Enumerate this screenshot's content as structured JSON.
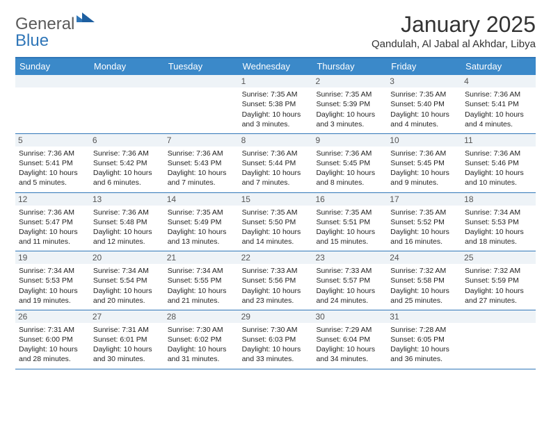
{
  "brand": {
    "word1": "General",
    "word2": "Blue",
    "text_color": "#5a5a5a",
    "accent_color": "#2f76b8"
  },
  "title": "January 2025",
  "location": "Qandulah, Al Jabal al Akhdar, Libya",
  "colors": {
    "header_bg": "#3b89c9",
    "header_text": "#ffffff",
    "rule": "#2f76b8",
    "daynum_bg": "#eef3f7",
    "daynum_text": "#555555",
    "body_text": "#222222",
    "page_bg": "#ffffff"
  },
  "days_of_week": [
    "Sunday",
    "Monday",
    "Tuesday",
    "Wednesday",
    "Thursday",
    "Friday",
    "Saturday"
  ],
  "weeks": [
    [
      {
        "n": "",
        "sunrise": "",
        "sunset": "",
        "daylight": ""
      },
      {
        "n": "",
        "sunrise": "",
        "sunset": "",
        "daylight": ""
      },
      {
        "n": "",
        "sunrise": "",
        "sunset": "",
        "daylight": ""
      },
      {
        "n": "1",
        "sunrise": "Sunrise: 7:35 AM",
        "sunset": "Sunset: 5:38 PM",
        "daylight": "Daylight: 10 hours and 3 minutes."
      },
      {
        "n": "2",
        "sunrise": "Sunrise: 7:35 AM",
        "sunset": "Sunset: 5:39 PM",
        "daylight": "Daylight: 10 hours and 3 minutes."
      },
      {
        "n": "3",
        "sunrise": "Sunrise: 7:35 AM",
        "sunset": "Sunset: 5:40 PM",
        "daylight": "Daylight: 10 hours and 4 minutes."
      },
      {
        "n": "4",
        "sunrise": "Sunrise: 7:36 AM",
        "sunset": "Sunset: 5:41 PM",
        "daylight": "Daylight: 10 hours and 4 minutes."
      }
    ],
    [
      {
        "n": "5",
        "sunrise": "Sunrise: 7:36 AM",
        "sunset": "Sunset: 5:41 PM",
        "daylight": "Daylight: 10 hours and 5 minutes."
      },
      {
        "n": "6",
        "sunrise": "Sunrise: 7:36 AM",
        "sunset": "Sunset: 5:42 PM",
        "daylight": "Daylight: 10 hours and 6 minutes."
      },
      {
        "n": "7",
        "sunrise": "Sunrise: 7:36 AM",
        "sunset": "Sunset: 5:43 PM",
        "daylight": "Daylight: 10 hours and 7 minutes."
      },
      {
        "n": "8",
        "sunrise": "Sunrise: 7:36 AM",
        "sunset": "Sunset: 5:44 PM",
        "daylight": "Daylight: 10 hours and 7 minutes."
      },
      {
        "n": "9",
        "sunrise": "Sunrise: 7:36 AM",
        "sunset": "Sunset: 5:45 PM",
        "daylight": "Daylight: 10 hours and 8 minutes."
      },
      {
        "n": "10",
        "sunrise": "Sunrise: 7:36 AM",
        "sunset": "Sunset: 5:45 PM",
        "daylight": "Daylight: 10 hours and 9 minutes."
      },
      {
        "n": "11",
        "sunrise": "Sunrise: 7:36 AM",
        "sunset": "Sunset: 5:46 PM",
        "daylight": "Daylight: 10 hours and 10 minutes."
      }
    ],
    [
      {
        "n": "12",
        "sunrise": "Sunrise: 7:36 AM",
        "sunset": "Sunset: 5:47 PM",
        "daylight": "Daylight: 10 hours and 11 minutes."
      },
      {
        "n": "13",
        "sunrise": "Sunrise: 7:36 AM",
        "sunset": "Sunset: 5:48 PM",
        "daylight": "Daylight: 10 hours and 12 minutes."
      },
      {
        "n": "14",
        "sunrise": "Sunrise: 7:35 AM",
        "sunset": "Sunset: 5:49 PM",
        "daylight": "Daylight: 10 hours and 13 minutes."
      },
      {
        "n": "15",
        "sunrise": "Sunrise: 7:35 AM",
        "sunset": "Sunset: 5:50 PM",
        "daylight": "Daylight: 10 hours and 14 minutes."
      },
      {
        "n": "16",
        "sunrise": "Sunrise: 7:35 AM",
        "sunset": "Sunset: 5:51 PM",
        "daylight": "Daylight: 10 hours and 15 minutes."
      },
      {
        "n": "17",
        "sunrise": "Sunrise: 7:35 AM",
        "sunset": "Sunset: 5:52 PM",
        "daylight": "Daylight: 10 hours and 16 minutes."
      },
      {
        "n": "18",
        "sunrise": "Sunrise: 7:34 AM",
        "sunset": "Sunset: 5:53 PM",
        "daylight": "Daylight: 10 hours and 18 minutes."
      }
    ],
    [
      {
        "n": "19",
        "sunrise": "Sunrise: 7:34 AM",
        "sunset": "Sunset: 5:53 PM",
        "daylight": "Daylight: 10 hours and 19 minutes."
      },
      {
        "n": "20",
        "sunrise": "Sunrise: 7:34 AM",
        "sunset": "Sunset: 5:54 PM",
        "daylight": "Daylight: 10 hours and 20 minutes."
      },
      {
        "n": "21",
        "sunrise": "Sunrise: 7:34 AM",
        "sunset": "Sunset: 5:55 PM",
        "daylight": "Daylight: 10 hours and 21 minutes."
      },
      {
        "n": "22",
        "sunrise": "Sunrise: 7:33 AM",
        "sunset": "Sunset: 5:56 PM",
        "daylight": "Daylight: 10 hours and 23 minutes."
      },
      {
        "n": "23",
        "sunrise": "Sunrise: 7:33 AM",
        "sunset": "Sunset: 5:57 PM",
        "daylight": "Daylight: 10 hours and 24 minutes."
      },
      {
        "n": "24",
        "sunrise": "Sunrise: 7:32 AM",
        "sunset": "Sunset: 5:58 PM",
        "daylight": "Daylight: 10 hours and 25 minutes."
      },
      {
        "n": "25",
        "sunrise": "Sunrise: 7:32 AM",
        "sunset": "Sunset: 5:59 PM",
        "daylight": "Daylight: 10 hours and 27 minutes."
      }
    ],
    [
      {
        "n": "26",
        "sunrise": "Sunrise: 7:31 AM",
        "sunset": "Sunset: 6:00 PM",
        "daylight": "Daylight: 10 hours and 28 minutes."
      },
      {
        "n": "27",
        "sunrise": "Sunrise: 7:31 AM",
        "sunset": "Sunset: 6:01 PM",
        "daylight": "Daylight: 10 hours and 30 minutes."
      },
      {
        "n": "28",
        "sunrise": "Sunrise: 7:30 AM",
        "sunset": "Sunset: 6:02 PM",
        "daylight": "Daylight: 10 hours and 31 minutes."
      },
      {
        "n": "29",
        "sunrise": "Sunrise: 7:30 AM",
        "sunset": "Sunset: 6:03 PM",
        "daylight": "Daylight: 10 hours and 33 minutes."
      },
      {
        "n": "30",
        "sunrise": "Sunrise: 7:29 AM",
        "sunset": "Sunset: 6:04 PM",
        "daylight": "Daylight: 10 hours and 34 minutes."
      },
      {
        "n": "31",
        "sunrise": "Sunrise: 7:28 AM",
        "sunset": "Sunset: 6:05 PM",
        "daylight": "Daylight: 10 hours and 36 minutes."
      },
      {
        "n": "",
        "sunrise": "",
        "sunset": "",
        "daylight": ""
      }
    ]
  ]
}
